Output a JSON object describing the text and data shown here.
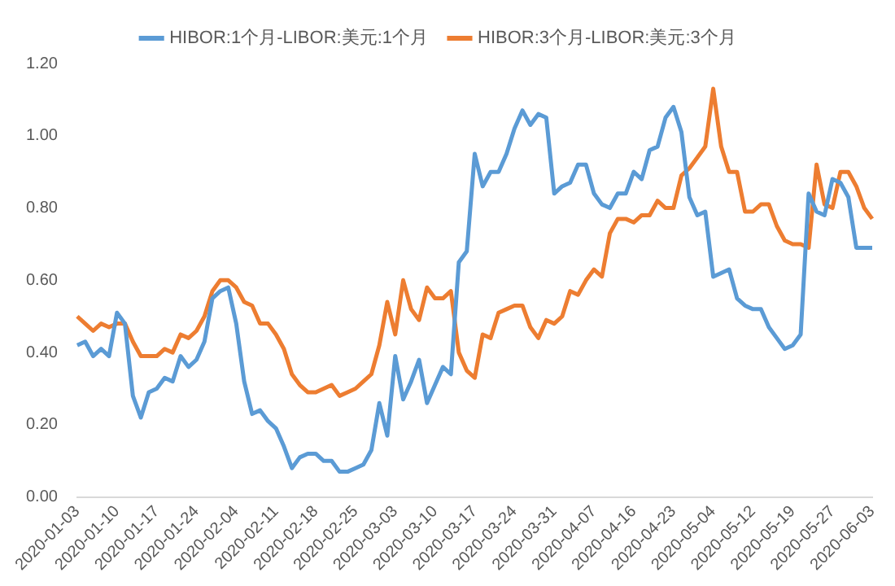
{
  "chart_data": {
    "type": "line",
    "categories": [
      "2020-01-03",
      null,
      null,
      null,
      null,
      "2020-01-10",
      null,
      null,
      null,
      null,
      "2020-01-17",
      null,
      null,
      null,
      null,
      "2020-01-24",
      null,
      null,
      null,
      null,
      "2020-02-04",
      null,
      null,
      null,
      null,
      "2020-02-11",
      null,
      null,
      null,
      null,
      "2020-02-18",
      null,
      null,
      null,
      null,
      "2020-02-25",
      null,
      null,
      null,
      null,
      "2020-03-03",
      null,
      null,
      null,
      null,
      "2020-03-10",
      null,
      null,
      null,
      null,
      "2020-03-17",
      null,
      null,
      null,
      null,
      "2020-03-24",
      null,
      null,
      null,
      null,
      "2020-03-31",
      null,
      null,
      null,
      null,
      "2020-04-07",
      null,
      null,
      null,
      null,
      "2020-04-16",
      null,
      null,
      null,
      null,
      "2020-04-23",
      null,
      null,
      null,
      null,
      "2020-05-04",
      null,
      null,
      null,
      null,
      "2020-05-12",
      null,
      null,
      null,
      null,
      "2020-05-19",
      null,
      null,
      null,
      null,
      "2020-05-27",
      null,
      null,
      null,
      null,
      "2020-06-03"
    ],
    "series": [
      {
        "name": "HIBOR:1个月-LIBOR:美元:1个月",
        "color": "#5b9bd5",
        "values": [
          0.42,
          0.43,
          0.39,
          0.41,
          0.39,
          0.51,
          0.48,
          0.28,
          0.22,
          0.29,
          0.3,
          0.33,
          0.32,
          0.39,
          0.36,
          0.38,
          0.43,
          0.55,
          0.57,
          0.58,
          0.48,
          0.32,
          0.23,
          0.24,
          0.21,
          0.19,
          0.14,
          0.08,
          0.11,
          0.12,
          0.12,
          0.1,
          0.1,
          0.07,
          0.07,
          0.08,
          0.09,
          0.13,
          0.26,
          0.17,
          0.39,
          0.27,
          0.32,
          0.38,
          0.26,
          0.31,
          0.36,
          0.34,
          0.65,
          0.68,
          0.95,
          0.86,
          0.9,
          0.9,
          0.95,
          1.02,
          1.07,
          1.03,
          1.06,
          1.05,
          0.84,
          0.86,
          0.87,
          0.92,
          0.92,
          0.84,
          0.81,
          0.8,
          0.84,
          0.84,
          0.9,
          0.88,
          0.96,
          0.97,
          1.05,
          1.08,
          1.01,
          0.83,
          0.78,
          0.79,
          0.61,
          0.62,
          0.63,
          0.55,
          0.53,
          0.52,
          0.52,
          0.47,
          0.44,
          0.41,
          0.42,
          0.45,
          0.84,
          0.79,
          0.78,
          0.88,
          0.87,
          0.83,
          0.69,
          0.69,
          0.69
        ]
      },
      {
        "name": "HIBOR:3个月-LIBOR:美元:3个月",
        "color": "#ed7d31",
        "values": [
          0.5,
          0.48,
          0.46,
          0.48,
          0.47,
          0.48,
          0.48,
          0.43,
          0.39,
          0.39,
          0.39,
          0.41,
          0.4,
          0.45,
          0.44,
          0.46,
          0.5,
          0.57,
          0.6,
          0.6,
          0.58,
          0.54,
          0.53,
          0.48,
          0.48,
          0.45,
          0.41,
          0.34,
          0.31,
          0.29,
          0.29,
          0.3,
          0.31,
          0.28,
          0.29,
          0.3,
          0.32,
          0.34,
          0.42,
          0.54,
          0.45,
          0.6,
          0.52,
          0.49,
          0.58,
          0.55,
          0.55,
          0.57,
          0.4,
          0.35,
          0.33,
          0.45,
          0.44,
          0.51,
          0.52,
          0.53,
          0.53,
          0.47,
          0.44,
          0.49,
          0.48,
          0.5,
          0.57,
          0.56,
          0.6,
          0.63,
          0.61,
          0.73,
          0.77,
          0.77,
          0.76,
          0.78,
          0.78,
          0.82,
          0.8,
          0.8,
          0.89,
          0.91,
          0.94,
          0.97,
          1.13,
          0.97,
          0.9,
          0.9,
          0.79,
          0.79,
          0.81,
          0.81,
          0.75,
          0.71,
          0.7,
          0.7,
          0.69,
          0.92,
          0.81,
          0.8,
          0.9,
          0.9,
          0.86,
          0.8,
          0.77
        ]
      }
    ],
    "ylim": [
      0,
      1.2
    ],
    "yticks": [
      {
        "value": 0,
        "label": "0.00"
      },
      {
        "value": 0.2,
        "label": "0.20"
      },
      {
        "value": 0.4,
        "label": "0.40"
      },
      {
        "value": 0.6,
        "label": "0.60"
      },
      {
        "value": 0.8,
        "label": "0.80"
      },
      {
        "value": 1.0,
        "label": "1.00"
      },
      {
        "value": 1.2,
        "label": "1.20"
      }
    ],
    "legend": "top",
    "marker": "none",
    "line_style": "solid",
    "grid": false
  }
}
